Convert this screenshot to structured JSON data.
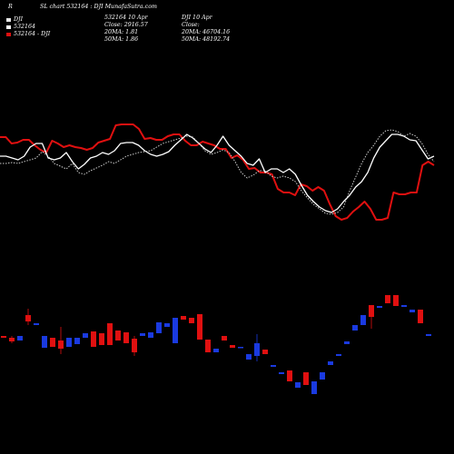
{
  "header": {
    "corner": "R",
    "title": "SL chart 532164 : DJI MunafaSutra.com",
    "legend": [
      {
        "label": "DJI",
        "color": "#e8e8e8"
      },
      {
        "label": "532164",
        "color": "#ffffff"
      },
      {
        "label": "532164 - DJI",
        "color": "#e01010"
      }
    ],
    "col1": [
      "532164 10 Apr",
      "Close: 2916.57",
      "20MA: 1.81",
      "50MA: 1.86"
    ],
    "col2": [
      "DJI 10 Apr",
      "Close:",
      "20MA: 46704.16",
      "50MA: 48192.74"
    ]
  },
  "chart_data": {
    "type": "line",
    "series": [
      {
        "name": "532164 - DJI",
        "color": "#e01010",
        "values": [
          151,
          151,
          158,
          157,
          154,
          154,
          160,
          165,
          168,
          155,
          158,
          162,
          160,
          162,
          163,
          165,
          163,
          157,
          155,
          153,
          138,
          137,
          137,
          137,
          142,
          153,
          152,
          154,
          154,
          150,
          148,
          148,
          155,
          160,
          160,
          156,
          158,
          160,
          164,
          164,
          174,
          171,
          176,
          186,
          185,
          190,
          190,
          192,
          208,
          212,
          212,
          215,
          203,
          205,
          210,
          206,
          210,
          225,
          238,
          242,
          240,
          233,
          228,
          222,
          230,
          242,
          242,
          240,
          212,
          214,
          214,
          212,
          212,
          182,
          178,
          182
        ]
      },
      {
        "color": "#ffffff",
        "values": [
          172,
          172,
          174,
          176,
          172,
          162,
          158,
          158,
          174,
          176,
          174,
          168,
          178,
          186,
          181,
          174,
          172,
          168,
          170,
          166,
          158,
          157,
          157,
          160,
          166,
          170,
          172,
          170,
          167,
          160,
          154,
          148,
          152,
          158,
          164,
          168,
          160,
          150,
          160,
          166,
          172,
          180,
          182,
          175,
          190,
          186,
          186,
          190,
          186,
          192,
          204,
          215,
          222,
          228,
          232,
          234,
          230,
          222,
          215,
          206,
          200,
          190,
          174,
          162,
          155,
          148,
          148,
          150,
          154,
          155,
          165,
          175,
          172
        ]
      },
      {
        "color": "#cccccc",
        "style": "dotted",
        "values": [
          180,
          180,
          179,
          180,
          178,
          176,
          174,
          167,
          172,
          180,
          183,
          186,
          180,
          190,
          192,
          188,
          185,
          182,
          178,
          180,
          176,
          172,
          170,
          168,
          167,
          166,
          162,
          158,
          156,
          154,
          152,
          150,
          151,
          158,
          166,
          170,
          168,
          165,
          168,
          178,
          190,
          196,
          193,
          188,
          188,
          194,
          196,
          194,
          196,
          200,
          210,
          218,
          225,
          230,
          235,
          236,
          234,
          228,
          210,
          195,
          180,
          168,
          160,
          150,
          144,
          143,
          145,
          150,
          147,
          150,
          158,
          170,
          178
        ]
      }
    ],
    "candles": [
      {
        "y1": 370,
        "y2": 372,
        "c": "r"
      },
      {
        "y1": 372,
        "y2": 376,
        "c": "r",
        "w": [
          370,
          378
        ]
      },
      {
        "y1": 370,
        "y2": 375,
        "c": "b"
      },
      {
        "y1": 347,
        "y2": 354,
        "c": "r",
        "w": [
          340,
          358
        ]
      },
      {
        "y1": 356,
        "y2": 358,
        "c": "b"
      },
      {
        "y1": 370,
        "y2": 383,
        "c": "b"
      },
      {
        "y1": 372,
        "y2": 382,
        "c": "r"
      },
      {
        "y1": 375,
        "y2": 384,
        "c": "r",
        "w": [
          360,
          390
        ]
      },
      {
        "y1": 372,
        "y2": 382,
        "c": "b"
      },
      {
        "y1": 372,
        "y2": 379,
        "c": "b"
      },
      {
        "y1": 367,
        "y2": 372,
        "c": "b"
      },
      {
        "y1": 365,
        "y2": 382,
        "c": "r"
      },
      {
        "y1": 367,
        "y2": 380,
        "c": "r"
      },
      {
        "y1": 356,
        "y2": 380,
        "c": "r"
      },
      {
        "y1": 364,
        "y2": 375,
        "c": "r"
      },
      {
        "y1": 366,
        "y2": 378,
        "c": "r"
      },
      {
        "y1": 373,
        "y2": 388,
        "c": "r",
        "w": [
          370,
          392
        ]
      },
      {
        "y1": 367,
        "y2": 370,
        "c": "b"
      },
      {
        "y1": 366,
        "y2": 372,
        "c": "b"
      },
      {
        "y1": 355,
        "y2": 367,
        "c": "b"
      },
      {
        "y1": 356,
        "y2": 360,
        "c": "b"
      },
      {
        "y1": 350,
        "y2": 378,
        "c": "b"
      },
      {
        "y1": 348,
        "y2": 352,
        "c": "r"
      },
      {
        "y1": 350,
        "y2": 356,
        "c": "r"
      },
      {
        "y1": 346,
        "y2": 374,
        "c": "r"
      },
      {
        "y1": 374,
        "y2": 388,
        "c": "r"
      },
      {
        "y1": 384,
        "y2": 388,
        "c": "b"
      },
      {
        "y1": 370,
        "y2": 375,
        "c": "r"
      },
      {
        "y1": 380,
        "y2": 383,
        "c": "r"
      },
      {
        "y1": 382,
        "y2": 383,
        "c": "b"
      },
      {
        "y1": 390,
        "y2": 396,
        "c": "b"
      },
      {
        "y1": 378,
        "y2": 392,
        "c": "b",
        "w": [
          368,
          398
        ]
      },
      {
        "y1": 385,
        "y2": 390,
        "c": "r"
      },
      {
        "y1": 402,
        "y2": 404,
        "c": "b"
      },
      {
        "y1": 410,
        "y2": 412,
        "c": "b"
      },
      {
        "y1": 408,
        "y2": 420,
        "c": "r"
      },
      {
        "y1": 421,
        "y2": 427,
        "c": "b"
      },
      {
        "y1": 410,
        "y2": 424,
        "c": "r"
      },
      {
        "y1": 420,
        "y2": 434,
        "c": "b"
      },
      {
        "y1": 410,
        "y2": 418,
        "c": "b"
      },
      {
        "y1": 398,
        "y2": 402,
        "c": "b"
      },
      {
        "y1": 390,
        "y2": 392,
        "c": "b"
      },
      {
        "y1": 376,
        "y2": 379,
        "c": "b"
      },
      {
        "y1": 358,
        "y2": 364,
        "c": "b"
      },
      {
        "y1": 347,
        "y2": 358,
        "c": "b"
      },
      {
        "y1": 336,
        "y2": 349,
        "c": "r",
        "w": [
          336,
          362
        ]
      },
      {
        "y1": 337,
        "y2": 339,
        "c": "b"
      },
      {
        "y1": 325,
        "y2": 334,
        "c": "r"
      },
      {
        "y1": 325,
        "y2": 337,
        "c": "r"
      },
      {
        "y1": 336,
        "y2": 338,
        "c": "b"
      },
      {
        "y1": 341,
        "y2": 344,
        "c": "b"
      },
      {
        "y1": 341,
        "y2": 356,
        "c": "r"
      },
      {
        "y1": 368,
        "y2": 370,
        "c": "b"
      }
    ]
  }
}
